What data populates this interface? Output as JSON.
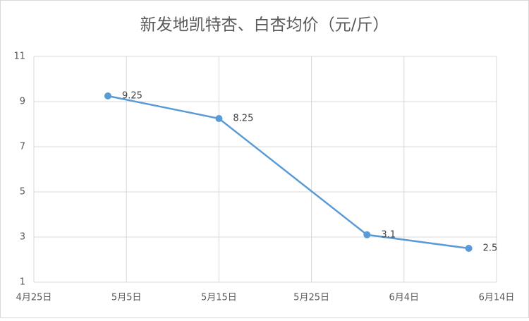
{
  "chart_data": {
    "type": "line",
    "title": "新发地凯特杏、白杏均价（元/斤）",
    "x": [
      "5月3日",
      "5月15日",
      "5月31日",
      "6月11日"
    ],
    "series": [
      {
        "name": "均价",
        "color": "#5b9bd5",
        "values": [
          9.25,
          8.25,
          3.1,
          2.5
        ]
      }
    ],
    "xlim": [
      "4月25日",
      "6月14日"
    ],
    "xticks": [
      "4月25日",
      "5月5日",
      "5月15日",
      "5月25日",
      "6月4日",
      "6月14日"
    ],
    "ylim": [
      1,
      11
    ],
    "yticks": [
      1,
      3,
      5,
      7,
      9,
      11
    ],
    "grid": true
  }
}
